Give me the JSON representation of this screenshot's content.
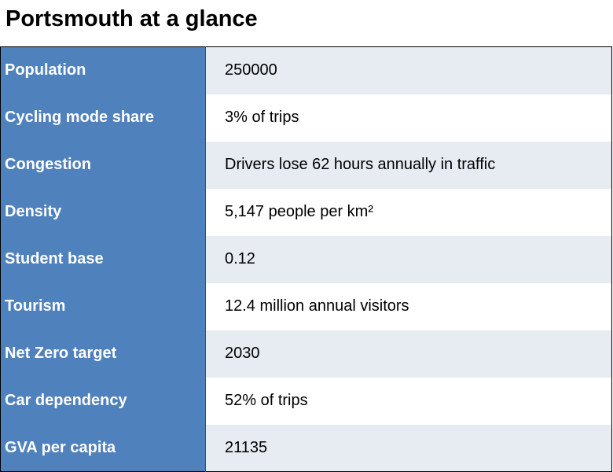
{
  "title": "Portsmouth at a glance",
  "colors": {
    "label_background": "#4f81bd",
    "label_text": "#ffffff",
    "row_alt_background": "#e7ecf3",
    "row_background": "#ffffff"
  },
  "rows": [
    {
      "label": "Population",
      "value": "250000"
    },
    {
      "label": "Cycling mode share",
      "value": "3% of trips"
    },
    {
      "label": "Congestion",
      "value": "Drivers lose 62 hours annually in traffic"
    },
    {
      "label": "Density",
      "value": "5,147 people per km²"
    },
    {
      "label": "Student base",
      "value": "0.12"
    },
    {
      "label": "Tourism",
      "value": "12.4 million annual visitors"
    },
    {
      "label": "Net Zero target",
      "value": "2030"
    },
    {
      "label": "Car dependency",
      "value": "52% of trips"
    },
    {
      "label": "GVA per capita",
      "value": "21135"
    }
  ]
}
